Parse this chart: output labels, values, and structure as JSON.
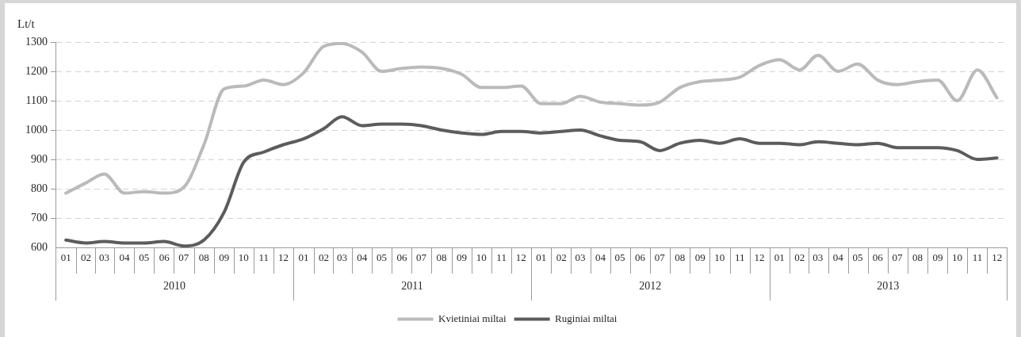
{
  "chart_data": {
    "type": "line",
    "ylabel": "Lt/t",
    "x": [
      "2010-01",
      "2010-02",
      "2010-03",
      "2010-04",
      "2010-05",
      "2010-06",
      "2010-07",
      "2010-08",
      "2010-09",
      "2010-10",
      "2010-11",
      "2010-12",
      "2011-01",
      "2011-02",
      "2011-03",
      "2011-04",
      "2011-05",
      "2011-06",
      "2011-07",
      "2011-08",
      "2011-09",
      "2011-10",
      "2011-11",
      "2011-12",
      "2012-01",
      "2012-02",
      "2012-03",
      "2012-04",
      "2012-05",
      "2012-06",
      "2012-07",
      "2012-08",
      "2012-09",
      "2012-10",
      "2012-11",
      "2012-12",
      "2013-01",
      "2013-02",
      "2013-03",
      "2013-04",
      "2013-05",
      "2013-06",
      "2013-07",
      "2013-08",
      "2013-09",
      "2013-10",
      "2013-11",
      "2013-12"
    ],
    "series": [
      {
        "name": "Kvietiniai miltai",
        "color": "#bababa",
        "values": [
          785,
          820,
          850,
          785,
          790,
          785,
          805,
          950,
          1140,
          1150,
          1170,
          1155,
          1195,
          1285,
          1295,
          1265,
          1200,
          1210,
          1215,
          1210,
          1190,
          1145,
          1145,
          1150,
          1090,
          1090,
          1115,
          1095,
          1090,
          1085,
          1095,
          1145,
          1165,
          1170,
          1180,
          1220,
          1240,
          1205,
          1255,
          1200,
          1225,
          1170,
          1155,
          1165,
          1170,
          1100,
          1205,
          1110
        ]
      },
      {
        "name": "Ruginiai miltai",
        "color": "#5c5c5c",
        "values": [
          625,
          615,
          620,
          615,
          615,
          620,
          605,
          625,
          720,
          890,
          925,
          950,
          970,
          1005,
          1045,
          1015,
          1020,
          1020,
          1015,
          1000,
          990,
          985,
          995,
          995,
          990,
          995,
          1000,
          980,
          965,
          960,
          930,
          955,
          965,
          955,
          970,
          955,
          955,
          950,
          960,
          955,
          950,
          955,
          940,
          940,
          940,
          930,
          900,
          905
        ]
      }
    ],
    "xlim": [
      "2009-12-16",
      "2013-12-16"
    ],
    "xticks": [
      {
        "value": "2010-01",
        "label": "01"
      },
      {
        "value": "2010-02",
        "label": "02"
      },
      {
        "value": "2010-03",
        "label": "03"
      },
      {
        "value": "2010-04",
        "label": "04"
      },
      {
        "value": "2010-05",
        "label": "05"
      },
      {
        "value": "2010-06",
        "label": "06"
      },
      {
        "value": "2010-07",
        "label": "07"
      },
      {
        "value": "2010-08",
        "label": "08"
      },
      {
        "value": "2010-09",
        "label": "09"
      },
      {
        "value": "2010-10",
        "label": "10"
      },
      {
        "value": "2010-11",
        "label": "11"
      },
      {
        "value": "2010-12",
        "label": "12"
      },
      {
        "value": "2011-01",
        "label": "01"
      },
      {
        "value": "2011-02",
        "label": "02"
      },
      {
        "value": "2011-03",
        "label": "03"
      },
      {
        "value": "2011-04",
        "label": "04"
      },
      {
        "value": "2011-05",
        "label": "05"
      },
      {
        "value": "2011-06",
        "label": "06"
      },
      {
        "value": "2011-07",
        "label": "07"
      },
      {
        "value": "2011-08",
        "label": "08"
      },
      {
        "value": "2011-09",
        "label": "09"
      },
      {
        "value": "2011-10",
        "label": "10"
      },
      {
        "value": "2011-11",
        "label": "11"
      },
      {
        "value": "2011-12",
        "label": "12"
      },
      {
        "value": "2012-01",
        "label": "01"
      },
      {
        "value": "2012-02",
        "label": "02"
      },
      {
        "value": "2012-03",
        "label": "03"
      },
      {
        "value": "2012-04",
        "label": "04"
      },
      {
        "value": "2012-05",
        "label": "05"
      },
      {
        "value": "2012-06",
        "label": "06"
      },
      {
        "value": "2012-07",
        "label": "07"
      },
      {
        "value": "2012-08",
        "label": "08"
      },
      {
        "value": "2012-09",
        "label": "09"
      },
      {
        "value": "2012-10",
        "label": "10"
      },
      {
        "value": "2012-11",
        "label": "11"
      },
      {
        "value": "2012-12",
        "label": "12"
      },
      {
        "value": "2013-01",
        "label": "01"
      },
      {
        "value": "2013-02",
        "label": "02"
      },
      {
        "value": "2013-03",
        "label": "03"
      },
      {
        "value": "2013-04",
        "label": "04"
      },
      {
        "value": "2013-05",
        "label": "05"
      },
      {
        "value": "2013-06",
        "label": "06"
      },
      {
        "value": "2013-07",
        "label": "07"
      },
      {
        "value": "2013-08",
        "label": "08"
      },
      {
        "value": "2013-09",
        "label": "09"
      },
      {
        "value": "2013-10",
        "label": "10"
      },
      {
        "value": "2013-11",
        "label": "11"
      },
      {
        "value": "2013-12",
        "label": "12"
      }
    ],
    "annotations": [
      "2010",
      "2011",
      "2012",
      "2013"
    ],
    "ylim": [
      600,
      1300
    ],
    "yticks": [
      600,
      700,
      800,
      900,
      1000,
      1100,
      1200,
      1300
    ],
    "grid": "y",
    "legend": "bottom"
  }
}
